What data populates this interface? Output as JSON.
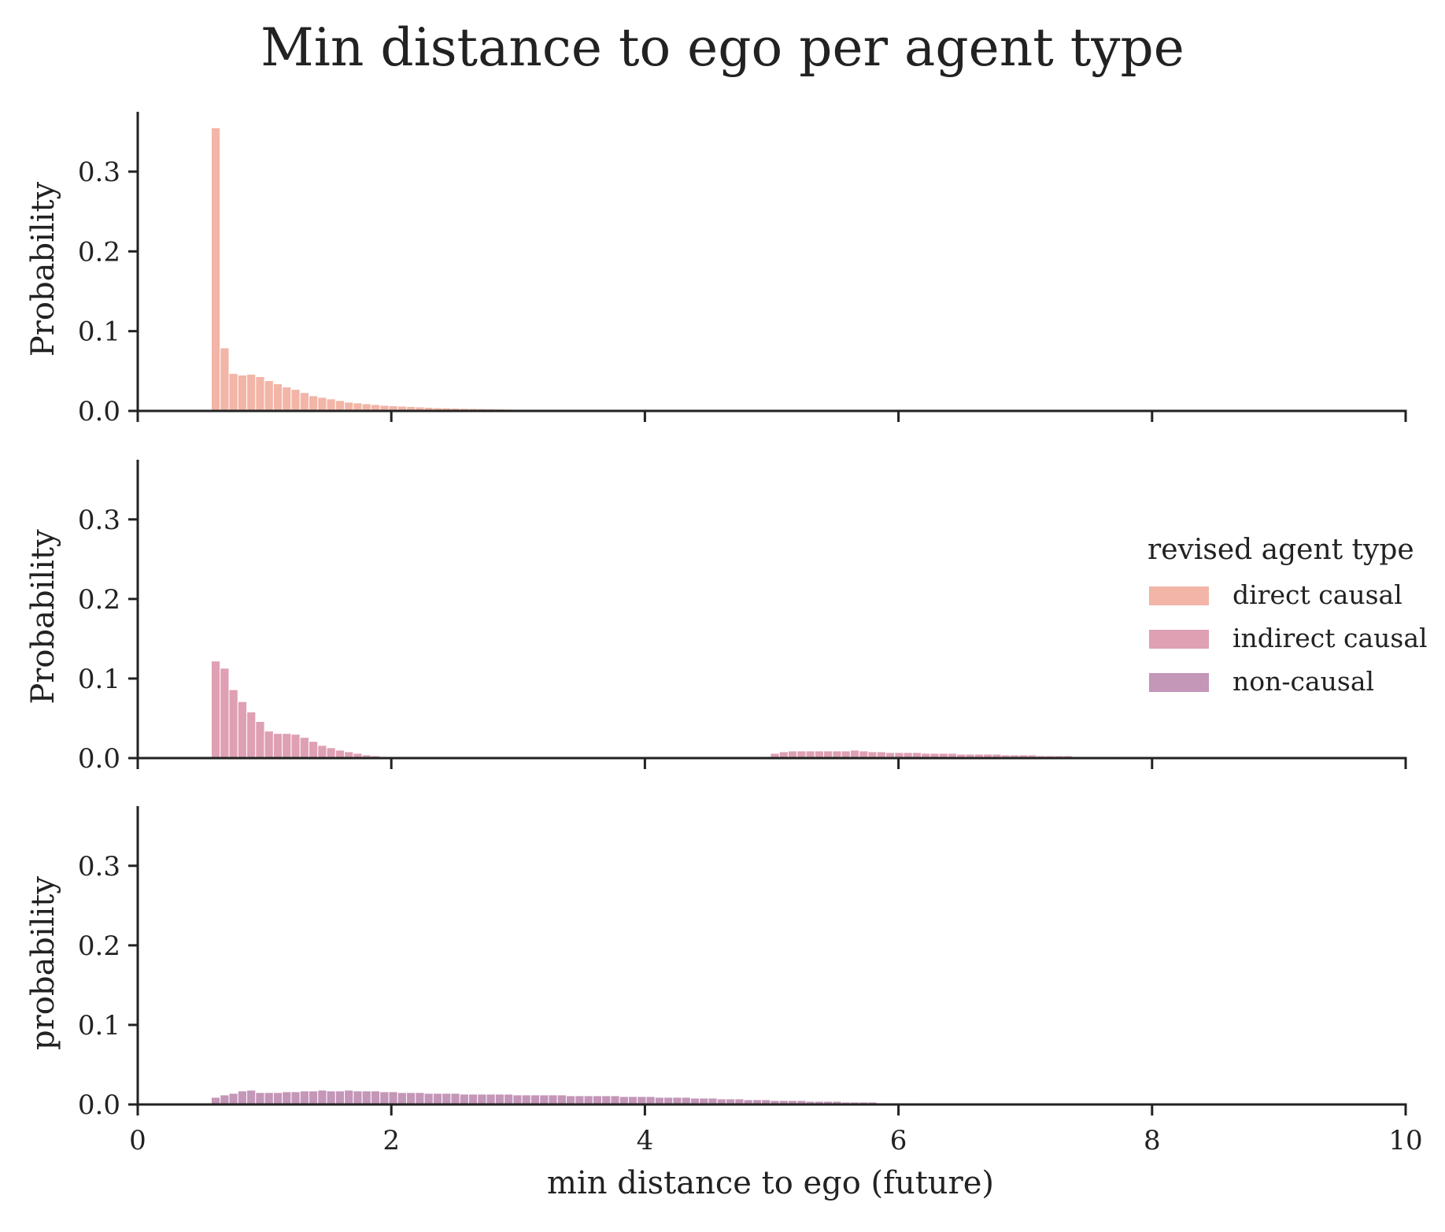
{
  "chart_data": {
    "type": "bar",
    "title": "Min distance to ego per agent type",
    "xlabel": "min distance to ego (future)",
    "xlim": [
      0,
      10
    ],
    "xticks": [
      0,
      2,
      4,
      6,
      8,
      10
    ],
    "xtick_labels": [
      "0",
      "2",
      "4",
      "6",
      "8",
      "10"
    ],
    "ylim": [
      0,
      0.375
    ],
    "yticks": [
      0.0,
      0.1,
      0.2,
      0.3
    ],
    "ytick_labels": [
      "0.0",
      "0.1",
      "0.2",
      "0.3"
    ],
    "bin_width": 0.07,
    "bin_start": 0.58,
    "legend": {
      "title": "revised agent type",
      "placement": "center-right",
      "entries": [
        "direct causal",
        "indirect causal",
        "non-causal"
      ]
    },
    "panels": [
      {
        "series_name": "direct causal",
        "ylabel": "Probability",
        "color": "#f2b5a7",
        "values": [
          0.355,
          0.079,
          0.047,
          0.045,
          0.046,
          0.043,
          0.038,
          0.034,
          0.03,
          0.027,
          0.023,
          0.019,
          0.017,
          0.015,
          0.013,
          0.011,
          0.01,
          0.009,
          0.008,
          0.007,
          0.0065,
          0.006,
          0.0055,
          0.005,
          0.0045,
          0.004,
          0.0038,
          0.0035,
          0.0032,
          0.003,
          0.0028,
          0.0026,
          0.0024,
          0.0022,
          0.002,
          0.0019,
          0.0018,
          0.0017,
          0.0016,
          0.0015,
          0.0014,
          0.0013,
          0.0012,
          0.0011,
          0.001,
          0.0009,
          0.0008,
          0.0007,
          0.0006,
          0.0005,
          0.0004,
          0.0004,
          0.0003,
          0.0003,
          0.0002,
          0.0002,
          0.0002,
          0.0001,
          0.0001,
          0.0001
        ]
      },
      {
        "series_name": "indirect causal",
        "ylabel": "Probability",
        "color": "#dfa0b3",
        "values": [
          0.122,
          0.113,
          0.086,
          0.071,
          0.058,
          0.046,
          0.034,
          0.031,
          0.031,
          0.03,
          0.026,
          0.021,
          0.016,
          0.013,
          0.01,
          0.008,
          0.006,
          0.004,
          0.003,
          0.002,
          0.001,
          0.0005,
          0,
          0,
          0,
          0,
          0,
          0,
          0,
          0,
          0,
          0,
          0,
          0,
          0,
          0,
          0,
          0,
          0,
          0,
          0,
          0,
          0,
          0,
          0,
          0,
          0,
          0,
          0,
          0,
          0,
          0,
          0,
          0,
          0,
          0,
          0,
          0,
          0,
          0,
          0,
          0,
          0.002,
          0.006,
          0.008,
          0.009,
          0.009,
          0.009,
          0.009,
          0.009,
          0.009,
          0.009,
          0.01,
          0.009,
          0.008,
          0.008,
          0.007,
          0.007,
          0.007,
          0.007,
          0.006,
          0.006,
          0.006,
          0.006,
          0.005,
          0.005,
          0.005,
          0.005,
          0.005,
          0.004,
          0.004,
          0.004,
          0.004,
          0.003,
          0.003,
          0.003,
          0.003,
          0.002,
          0.002,
          0.002,
          0.002,
          0.002,
          0.001,
          0.001,
          0.001,
          0.001,
          0.001,
          0.0008,
          0.0006,
          0.0004,
          0.0003,
          0.0002,
          0.0001
        ]
      },
      {
        "series_name": "non-causal",
        "ylabel": "probability",
        "color": "#c496b8",
        "values": [
          0.009,
          0.012,
          0.014,
          0.017,
          0.018,
          0.015,
          0.015,
          0.015,
          0.016,
          0.016,
          0.017,
          0.017,
          0.018,
          0.017,
          0.017,
          0.018,
          0.017,
          0.017,
          0.017,
          0.016,
          0.016,
          0.015,
          0.015,
          0.015,
          0.014,
          0.014,
          0.014,
          0.014,
          0.013,
          0.013,
          0.013,
          0.013,
          0.013,
          0.013,
          0.012,
          0.012,
          0.012,
          0.012,
          0.012,
          0.012,
          0.011,
          0.011,
          0.011,
          0.011,
          0.011,
          0.011,
          0.01,
          0.01,
          0.01,
          0.01,
          0.009,
          0.009,
          0.009,
          0.009,
          0.008,
          0.008,
          0.008,
          0.007,
          0.007,
          0.007,
          0.006,
          0.006,
          0.006,
          0.005,
          0.005,
          0.005,
          0.005,
          0.004,
          0.004,
          0.004,
          0.004,
          0.003,
          0.003,
          0.003,
          0.003,
          0.002,
          0.002,
          0.002,
          0.002,
          0.002,
          0.001,
          0.001,
          0.001,
          0.001,
          0.001,
          0.001,
          0.0008,
          0.0007,
          0.0006,
          0.0005,
          0.0004,
          0.0003,
          0.0002,
          0.0002,
          0.0001
        ]
      }
    ]
  }
}
